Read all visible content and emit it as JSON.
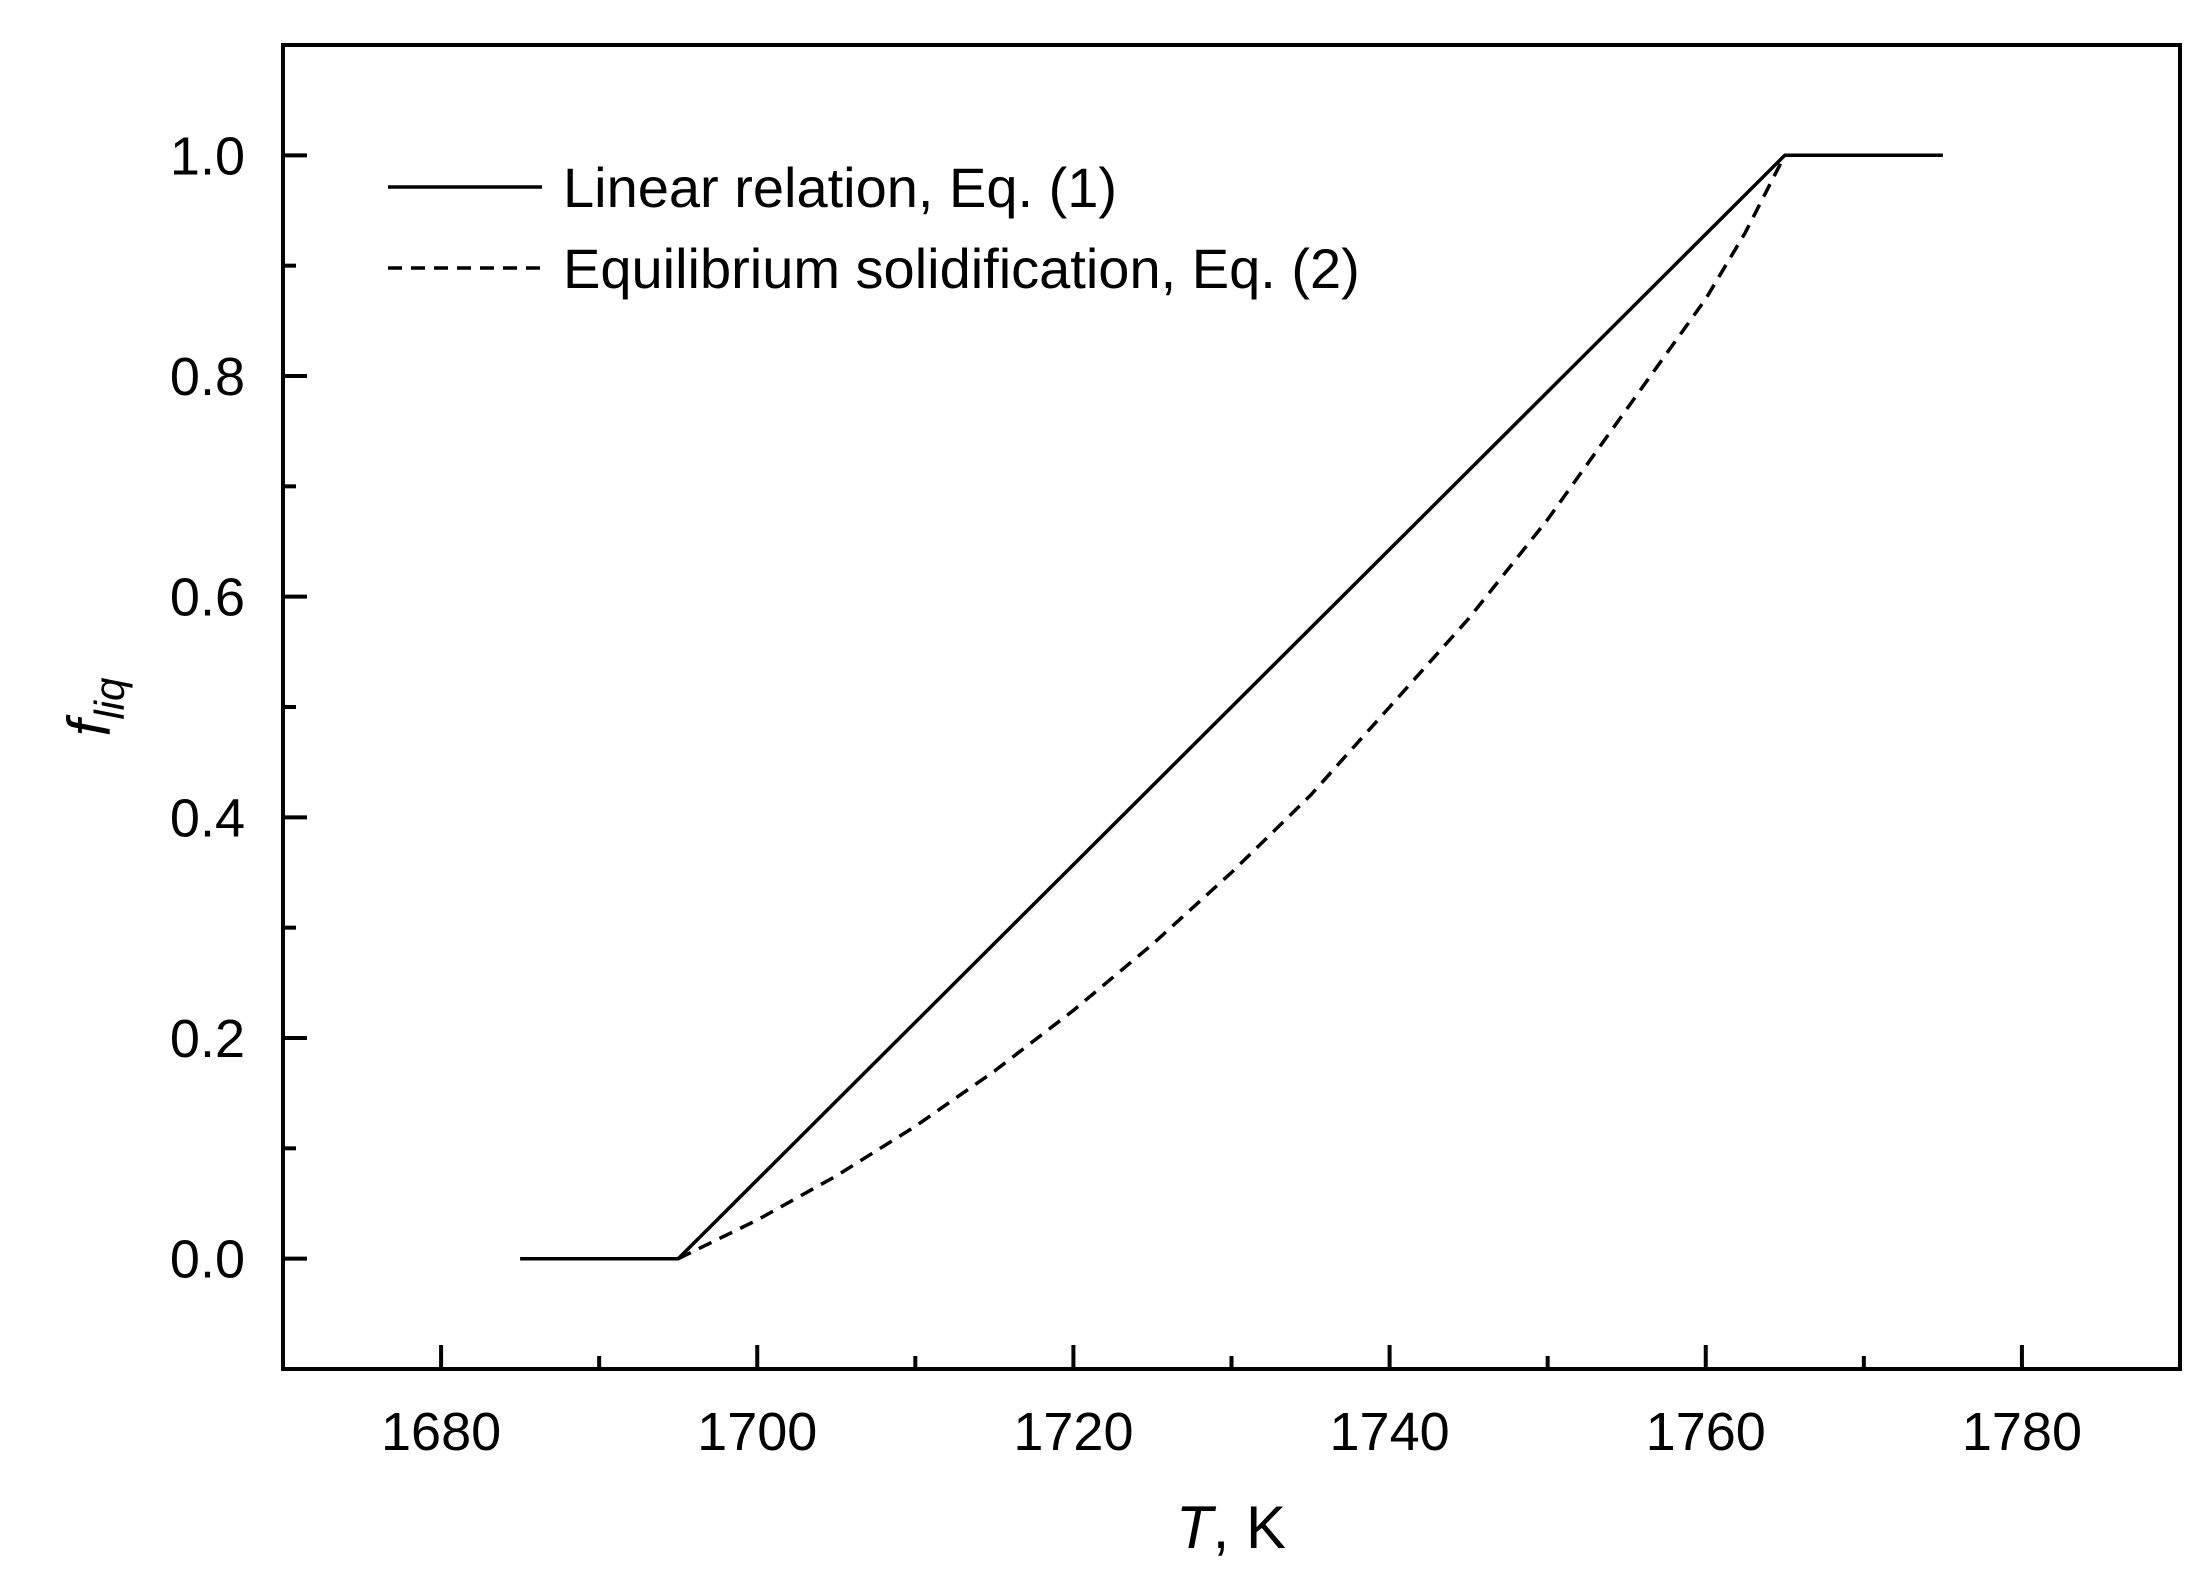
{
  "chart_data": {
    "type": "line",
    "title": "",
    "xlabel": {
      "symbol": "T",
      "unit": ", K"
    },
    "ylabel": {
      "symbol": "f",
      "subscript": "liq"
    },
    "xlim": [
      1670,
      1790
    ],
    "ylim": [
      -0.1,
      1.1
    ],
    "x_major_ticks": [
      1680,
      1700,
      1720,
      1740,
      1760,
      1780
    ],
    "x_tick_labels": [
      "1680",
      "1700",
      "1720",
      "1740",
      "1760",
      "1780"
    ],
    "x_minor_ticks": [
      1690,
      1710,
      1730,
      1750,
      1770
    ],
    "y_major_ticks": [
      0.0,
      0.2,
      0.4,
      0.6,
      0.8,
      1.0
    ],
    "y_tick_labels": [
      "0.0",
      "0.2",
      "0.4",
      "0.6",
      "0.8",
      "1.0"
    ],
    "y_minor_ticks": [
      0.1,
      0.3,
      0.5,
      0.7,
      0.9
    ],
    "grid": false,
    "legend_position": "top-left",
    "series": [
      {
        "name": "Linear relation, Eq. (1)",
        "style": "solid",
        "color": "#000000",
        "x": [
          1685,
          1695,
          1765,
          1775
        ],
        "y": [
          0.0,
          0.0,
          1.0,
          1.0
        ]
      },
      {
        "name": "Equilibrium solidification, Eq. (2)",
        "style": "dashed",
        "color": "#000000",
        "x": [
          1695,
          1700,
          1705,
          1710,
          1715,
          1720,
          1725,
          1730,
          1735,
          1740,
          1745,
          1750,
          1755,
          1760,
          1762.5,
          1765
        ],
        "y": [
          0.0,
          0.035,
          0.075,
          0.12,
          0.17,
          0.225,
          0.285,
          0.35,
          0.42,
          0.5,
          0.58,
          0.67,
          0.77,
          0.87,
          0.93,
          1.0
        ]
      }
    ]
  }
}
